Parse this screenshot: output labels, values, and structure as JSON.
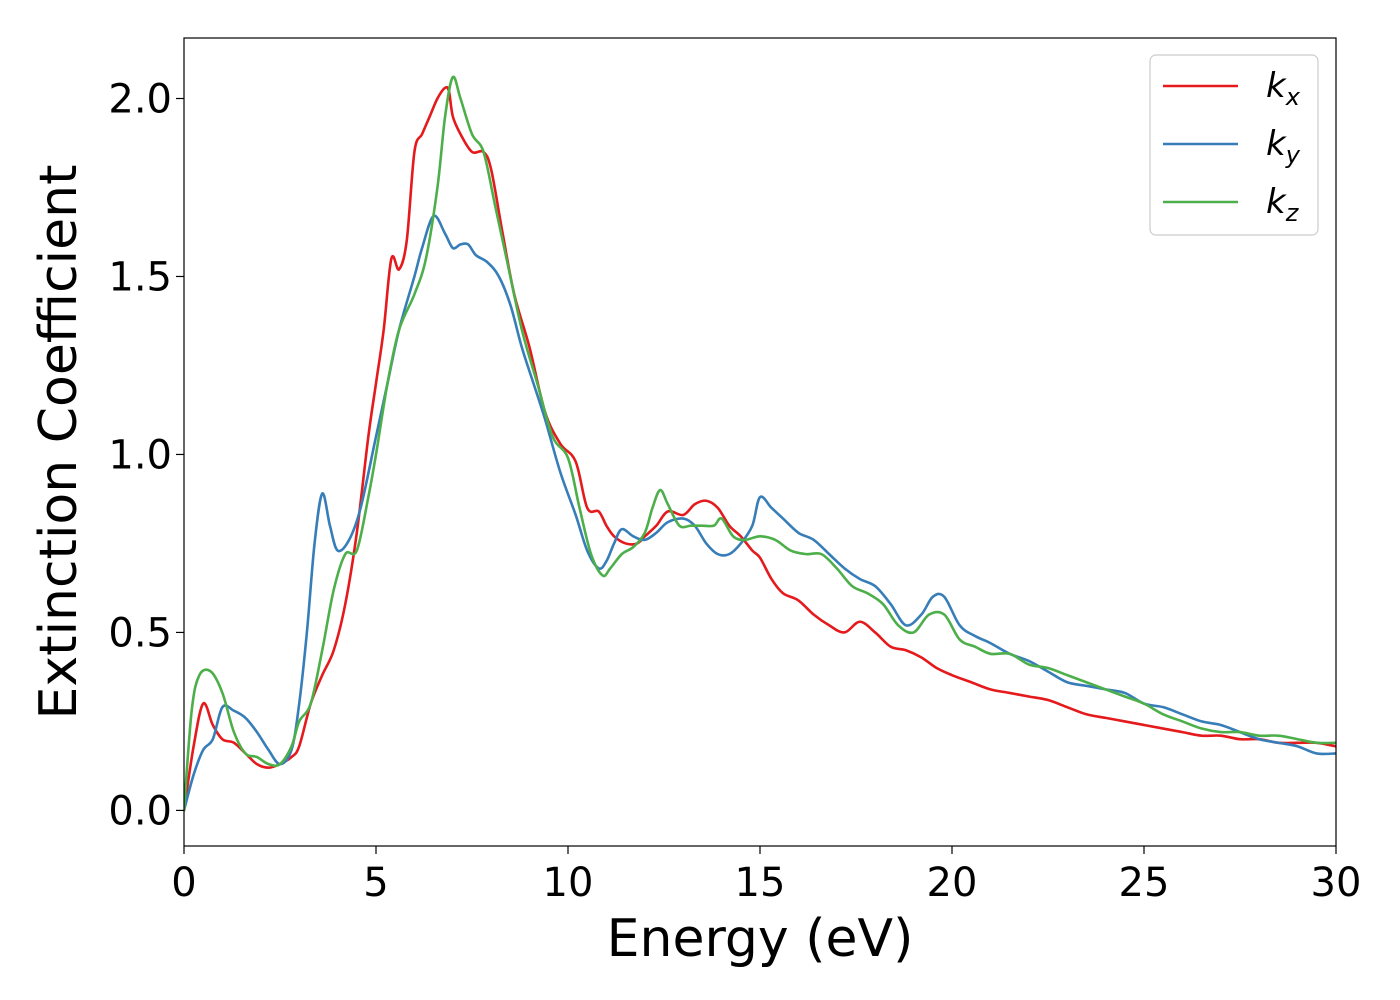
{
  "chart_data": {
    "type": "line",
    "title": "",
    "xlabel": "Energy (eV)",
    "ylabel": "Extinction Coefficient",
    "xlim": [
      0,
      30
    ],
    "ylim": [
      -0.1,
      2.17
    ],
    "xticks": [
      0,
      5,
      10,
      15,
      20,
      25,
      30
    ],
    "xtick_labels": [
      "0",
      "5",
      "10",
      "15",
      "20",
      "25",
      "30"
    ],
    "yticks": [
      0.0,
      0.5,
      1.0,
      1.5,
      2.0
    ],
    "ytick_labels": [
      "0.0",
      "0.5",
      "1.0",
      "1.5",
      "2.0"
    ],
    "grid": false,
    "legend_position": "top-right",
    "series": [
      {
        "name": "kx",
        "label_base": "k",
        "label_sub": "x",
        "color": "#e41a1c",
        "x": [
          0,
          0.25,
          0.5,
          0.75,
          1.0,
          1.3,
          1.6,
          1.9,
          2.2,
          2.5,
          2.8,
          3.0,
          3.3,
          3.6,
          3.9,
          4.2,
          4.5,
          4.8,
          5.0,
          5.2,
          5.4,
          5.6,
          5.8,
          6.0,
          6.2,
          6.4,
          6.6,
          6.8,
          6.9,
          7.0,
          7.2,
          7.5,
          7.8,
          8.0,
          8.3,
          8.6,
          9.0,
          9.4,
          9.8,
          10.2,
          10.5,
          10.8,
          11.0,
          11.2,
          11.5,
          11.8,
          12.0,
          12.3,
          12.6,
          13.0,
          13.3,
          13.6,
          13.9,
          14.2,
          14.5,
          14.8,
          15.0,
          15.3,
          15.6,
          16.0,
          16.4,
          16.8,
          17.2,
          17.6,
          18.0,
          18.4,
          18.8,
          19.2,
          19.6,
          20.0,
          20.5,
          21.0,
          21.5,
          22.0,
          22.5,
          23.0,
          23.5,
          24.0,
          24.5,
          25.0,
          25.5,
          26.0,
          26.5,
          27.0,
          27.5,
          28.0,
          28.5,
          29.0,
          29.5,
          30.0
        ],
        "values": [
          0.0,
          0.18,
          0.3,
          0.24,
          0.2,
          0.19,
          0.16,
          0.13,
          0.12,
          0.13,
          0.15,
          0.18,
          0.3,
          0.38,
          0.45,
          0.58,
          0.78,
          1.05,
          1.2,
          1.35,
          1.55,
          1.52,
          1.6,
          1.85,
          1.9,
          1.95,
          2.0,
          2.03,
          2.02,
          1.95,
          1.9,
          1.85,
          1.85,
          1.8,
          1.62,
          1.45,
          1.3,
          1.12,
          1.03,
          0.98,
          0.85,
          0.84,
          0.8,
          0.77,
          0.75,
          0.75,
          0.77,
          0.8,
          0.84,
          0.83,
          0.86,
          0.87,
          0.85,
          0.8,
          0.77,
          0.73,
          0.71,
          0.65,
          0.61,
          0.59,
          0.55,
          0.52,
          0.5,
          0.53,
          0.5,
          0.46,
          0.45,
          0.43,
          0.4,
          0.38,
          0.36,
          0.34,
          0.33,
          0.32,
          0.31,
          0.29,
          0.27,
          0.26,
          0.25,
          0.24,
          0.23,
          0.22,
          0.21,
          0.21,
          0.2,
          0.2,
          0.19,
          0.19,
          0.19,
          0.18
        ]
      },
      {
        "name": "ky",
        "label_base": "k",
        "label_sub": "y",
        "color": "#377eb8",
        "x": [
          0,
          0.25,
          0.5,
          0.75,
          1.0,
          1.3,
          1.6,
          1.9,
          2.2,
          2.5,
          2.8,
          3.0,
          3.2,
          3.4,
          3.6,
          3.8,
          4.0,
          4.3,
          4.6,
          5.0,
          5.3,
          5.6,
          6.0,
          6.2,
          6.5,
          6.8,
          7.0,
          7.2,
          7.4,
          7.6,
          7.9,
          8.2,
          8.5,
          8.8,
          9.1,
          9.4,
          9.8,
          10.2,
          10.5,
          10.8,
          11.0,
          11.2,
          11.4,
          11.7,
          12.0,
          12.3,
          12.6,
          13.0,
          13.3,
          13.6,
          13.9,
          14.2,
          14.5,
          14.8,
          15.0,
          15.3,
          15.6,
          16.0,
          16.4,
          16.8,
          17.2,
          17.6,
          18.0,
          18.4,
          18.8,
          19.2,
          19.5,
          19.8,
          20.2,
          20.6,
          21.0,
          21.5,
          22.0,
          22.5,
          23.0,
          23.5,
          24.0,
          24.5,
          25.0,
          25.5,
          26.0,
          26.5,
          27.0,
          27.5,
          28.0,
          28.5,
          29.0,
          29.5,
          30.0
        ],
        "values": [
          0.0,
          0.1,
          0.17,
          0.2,
          0.29,
          0.28,
          0.26,
          0.22,
          0.17,
          0.13,
          0.17,
          0.3,
          0.5,
          0.75,
          0.89,
          0.8,
          0.73,
          0.76,
          0.85,
          1.05,
          1.2,
          1.35,
          1.5,
          1.58,
          1.67,
          1.62,
          1.58,
          1.59,
          1.59,
          1.56,
          1.54,
          1.5,
          1.42,
          1.3,
          1.2,
          1.1,
          0.95,
          0.83,
          0.73,
          0.68,
          0.7,
          0.75,
          0.79,
          0.77,
          0.76,
          0.78,
          0.81,
          0.82,
          0.8,
          0.75,
          0.72,
          0.72,
          0.75,
          0.8,
          0.88,
          0.85,
          0.82,
          0.78,
          0.76,
          0.72,
          0.68,
          0.65,
          0.63,
          0.58,
          0.52,
          0.55,
          0.6,
          0.6,
          0.52,
          0.49,
          0.47,
          0.44,
          0.42,
          0.39,
          0.36,
          0.35,
          0.34,
          0.33,
          0.3,
          0.29,
          0.27,
          0.25,
          0.24,
          0.22,
          0.2,
          0.19,
          0.18,
          0.16,
          0.16
        ]
      },
      {
        "name": "kz",
        "label_base": "k",
        "label_sub": "z",
        "color": "#4daf4a",
        "x": [
          0,
          0.2,
          0.4,
          0.7,
          1.0,
          1.3,
          1.6,
          1.9,
          2.2,
          2.5,
          2.8,
          3.0,
          3.3,
          3.6,
          3.9,
          4.2,
          4.5,
          4.8,
          5.0,
          5.3,
          5.6,
          6.0,
          6.3,
          6.6,
          6.8,
          7.0,
          7.2,
          7.5,
          7.8,
          8.1,
          8.4,
          8.8,
          9.2,
          9.6,
          10.0,
          10.3,
          10.6,
          10.9,
          11.1,
          11.4,
          11.7,
          12.0,
          12.2,
          12.4,
          12.6,
          12.9,
          13.2,
          13.5,
          13.8,
          14.0,
          14.3,
          14.6,
          15.0,
          15.4,
          15.8,
          16.2,
          16.6,
          17.0,
          17.4,
          17.8,
          18.2,
          18.6,
          19.0,
          19.4,
          19.8,
          20.2,
          20.6,
          21.0,
          21.5,
          22.0,
          22.5,
          23.0,
          23.5,
          24.0,
          24.5,
          25.0,
          25.5,
          26.0,
          26.5,
          27.0,
          27.5,
          28.0,
          28.5,
          29.0,
          29.5,
          30.0
        ],
        "values": [
          0.0,
          0.28,
          0.38,
          0.39,
          0.33,
          0.22,
          0.16,
          0.15,
          0.13,
          0.13,
          0.18,
          0.25,
          0.3,
          0.45,
          0.62,
          0.72,
          0.73,
          0.88,
          1.0,
          1.2,
          1.35,
          1.45,
          1.55,
          1.75,
          1.95,
          2.06,
          2.0,
          1.9,
          1.85,
          1.7,
          1.55,
          1.35,
          1.2,
          1.05,
          0.99,
          0.85,
          0.72,
          0.66,
          0.68,
          0.72,
          0.74,
          0.78,
          0.85,
          0.9,
          0.86,
          0.8,
          0.8,
          0.8,
          0.8,
          0.82,
          0.77,
          0.76,
          0.77,
          0.76,
          0.73,
          0.72,
          0.72,
          0.68,
          0.63,
          0.61,
          0.58,
          0.52,
          0.5,
          0.55,
          0.55,
          0.48,
          0.46,
          0.44,
          0.44,
          0.41,
          0.4,
          0.38,
          0.36,
          0.34,
          0.32,
          0.3,
          0.27,
          0.25,
          0.23,
          0.22,
          0.22,
          0.21,
          0.21,
          0.2,
          0.19,
          0.19
        ]
      }
    ]
  }
}
